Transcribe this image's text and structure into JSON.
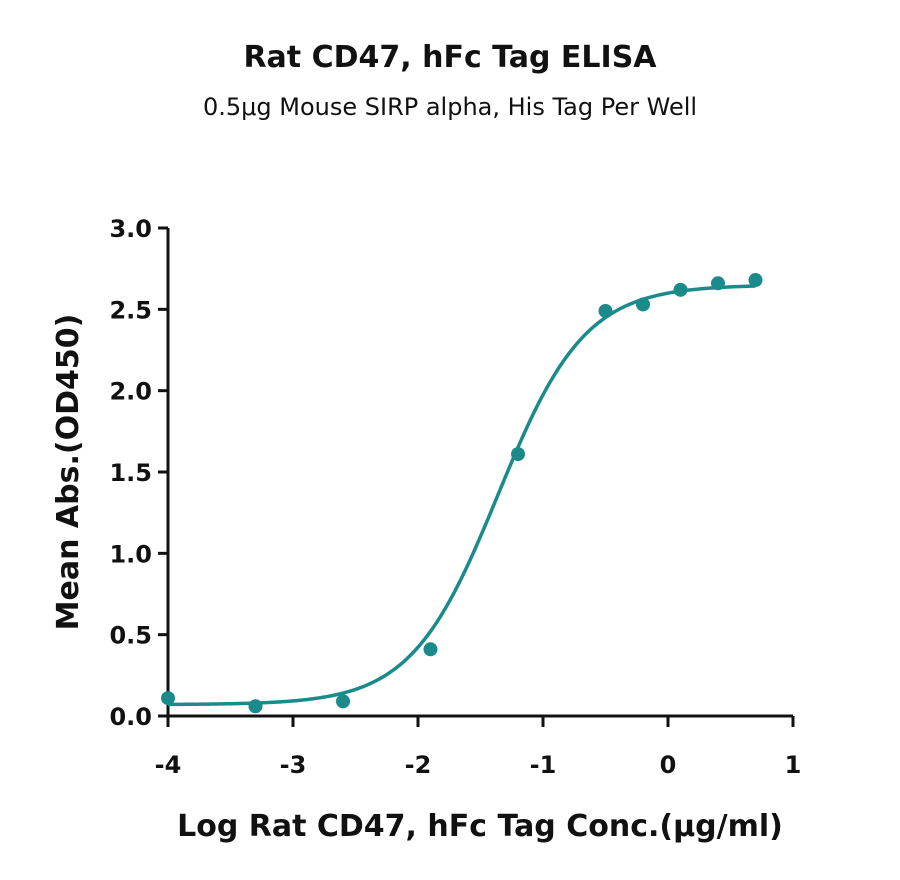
{
  "chart_data": {
    "type": "scatter",
    "title": "Rat CD47, hFc Tag ELISA",
    "subtitle": "0.5μg Mouse SIRP alpha, His Tag Per Well",
    "xlabel": "Log Rat CD47, hFc Tag Conc.(μg/ml)",
    "ylabel": "Mean Abs.(OD450)",
    "xlim": [
      -4,
      1
    ],
    "ylim": [
      0,
      3
    ],
    "xticks": [
      "-4",
      "-3",
      "-2",
      "-1",
      "0",
      "1"
    ],
    "yticks": [
      "0.0",
      "0.5",
      "1.0",
      "1.5",
      "2.0",
      "2.5",
      "3.0"
    ],
    "grid": false,
    "color": "#1a8a8a",
    "series": [
      {
        "points": [
          {
            "x": -4.0,
            "y": 0.11
          },
          {
            "x": -3.3,
            "y": 0.06
          },
          {
            "x": -2.6,
            "y": 0.09
          },
          {
            "x": -1.9,
            "y": 0.41
          },
          {
            "x": -1.2,
            "y": 1.61
          },
          {
            "x": -0.5,
            "y": 2.49
          },
          {
            "x": -0.2,
            "y": 2.53
          },
          {
            "x": 0.1,
            "y": 2.62
          },
          {
            "x": 0.4,
            "y": 2.66
          },
          {
            "x": 0.7,
            "y": 2.68
          }
        ],
        "fit": {
          "bottom": 0.07,
          "top": 2.65,
          "logEC50": -1.36,
          "hill": 1.25
        }
      }
    ]
  }
}
